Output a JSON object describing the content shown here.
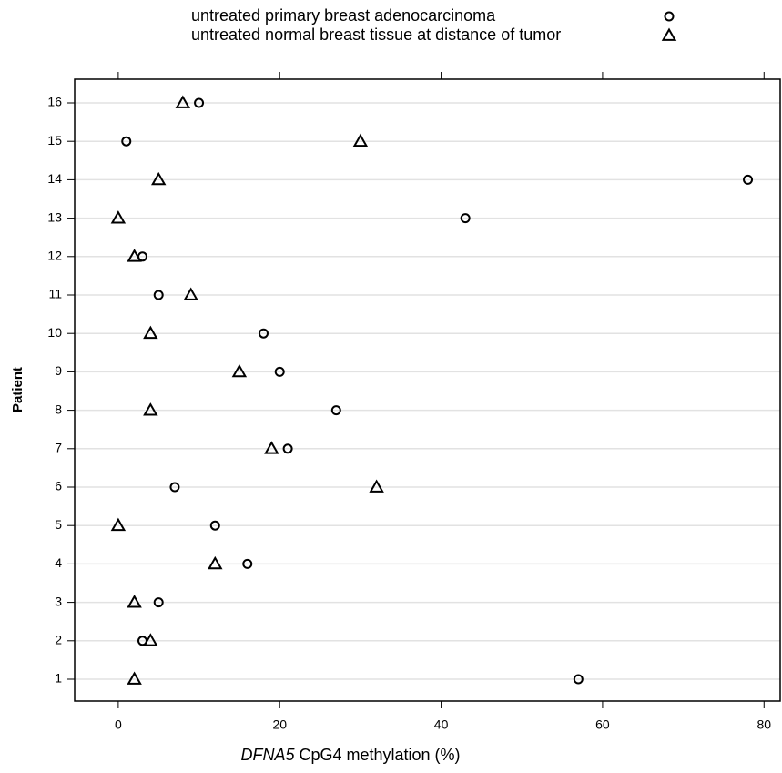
{
  "chart_data": {
    "type": "dot",
    "x_label": "DFNA5 CpG4 methylation (%)",
    "y_label": "Patient",
    "categories": [
      "1",
      "2",
      "3",
      "4",
      "5",
      "6",
      "7",
      "8",
      "9",
      "10",
      "11",
      "12",
      "13",
      "14",
      "15",
      "16"
    ],
    "series": [
      {
        "name": "untreated primary breast adenocarcinoma",
        "marker": "circle",
        "color": "#000000",
        "values": [
          57,
          3,
          5,
          16,
          12,
          7,
          21,
          27,
          20,
          18,
          5,
          3,
          43,
          78,
          1,
          10
        ]
      },
      {
        "name": "untreated normal breast tissue at distance of tumor",
        "marker": "triangle",
        "color": "#000000",
        "values": [
          2,
          4,
          2,
          12,
          0,
          32,
          19,
          4,
          15,
          4,
          9,
          2,
          0,
          5,
          30,
          8
        ]
      }
    ],
    "xlim": [
      -5.4,
      82
    ],
    "xticks": [
      0,
      20,
      40,
      60,
      80
    ],
    "grid": true,
    "legend": "top"
  }
}
